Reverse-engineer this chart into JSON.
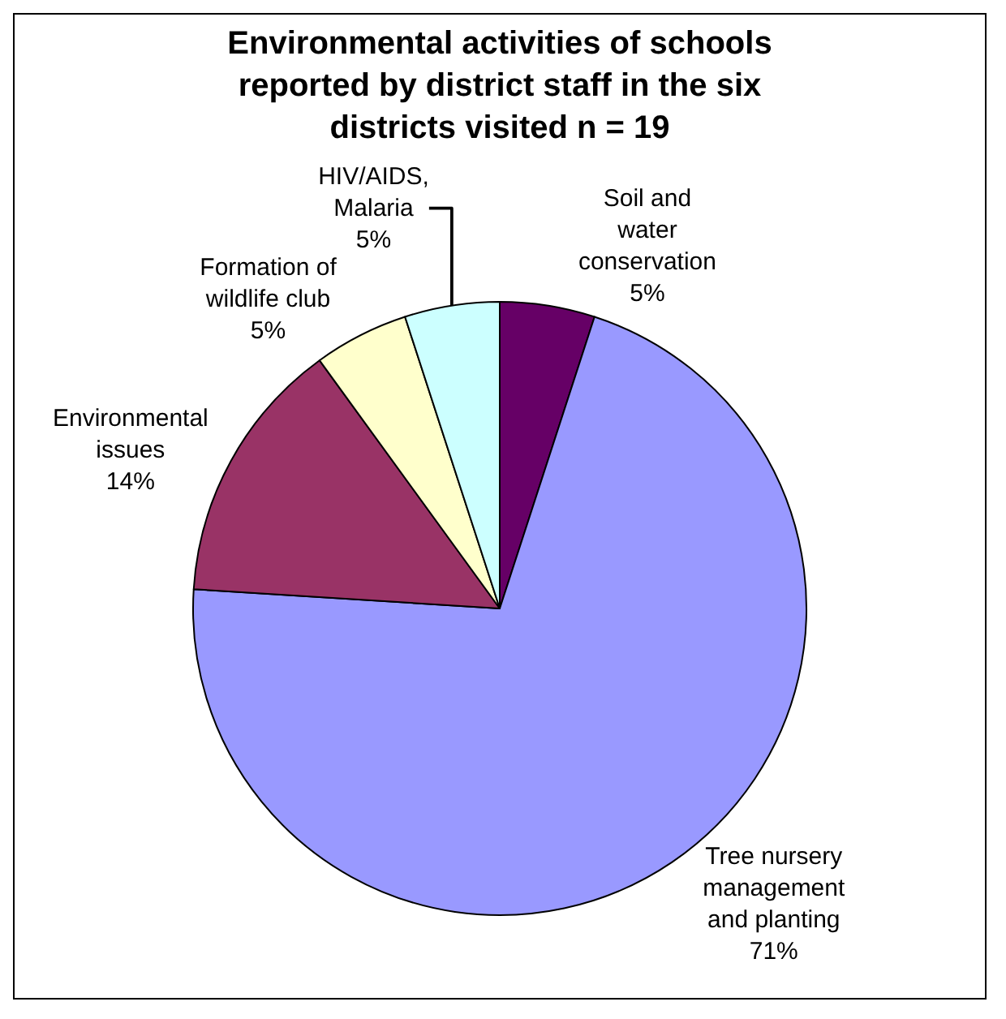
{
  "chart_data": {
    "type": "pie",
    "title": "Environmental activities of schools reported by district staff in the six districts visited n = 19",
    "categories": [
      "Soil and water conservation",
      "Tree nursery management and planting",
      "Environmental issues",
      "Formation of wildlife club",
      "HIV/AIDS, Malaria"
    ],
    "values": [
      5,
      71,
      14,
      5,
      5
    ],
    "colors": [
      "#660066",
      "#9999ff",
      "#993366",
      "#ffffcc",
      "#ccffff"
    ],
    "value_labels": [
      "5%",
      "71%",
      "14%",
      "5%",
      "5%"
    ],
    "legend": false
  }
}
